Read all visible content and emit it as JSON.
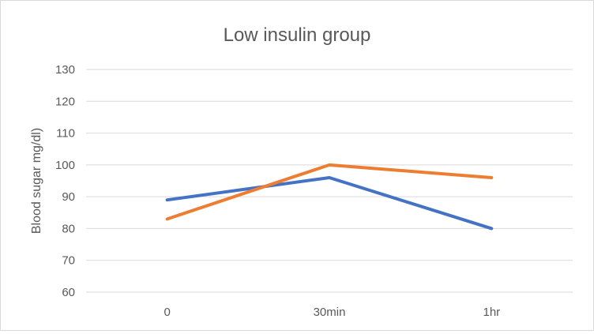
{
  "chart_data": {
    "type": "line",
    "title": "Low insulin group",
    "xlabel": "",
    "ylabel": "Blood sugar mg/dl)",
    "categories": [
      "0",
      "30min",
      "1hr"
    ],
    "ylim": [
      60,
      130
    ],
    "yticks": [
      60,
      70,
      80,
      90,
      100,
      110,
      120,
      130
    ],
    "grid": true,
    "legend": "none",
    "series": [
      {
        "values": [
          89,
          96,
          80
        ],
        "color": "#4472c4"
      },
      {
        "values": [
          83,
          100,
          96
        ],
        "color": "#ed7d31"
      }
    ]
  },
  "colors": {
    "grid": "#d9d9d9",
    "text": "#595959",
    "title": "#595959"
  }
}
